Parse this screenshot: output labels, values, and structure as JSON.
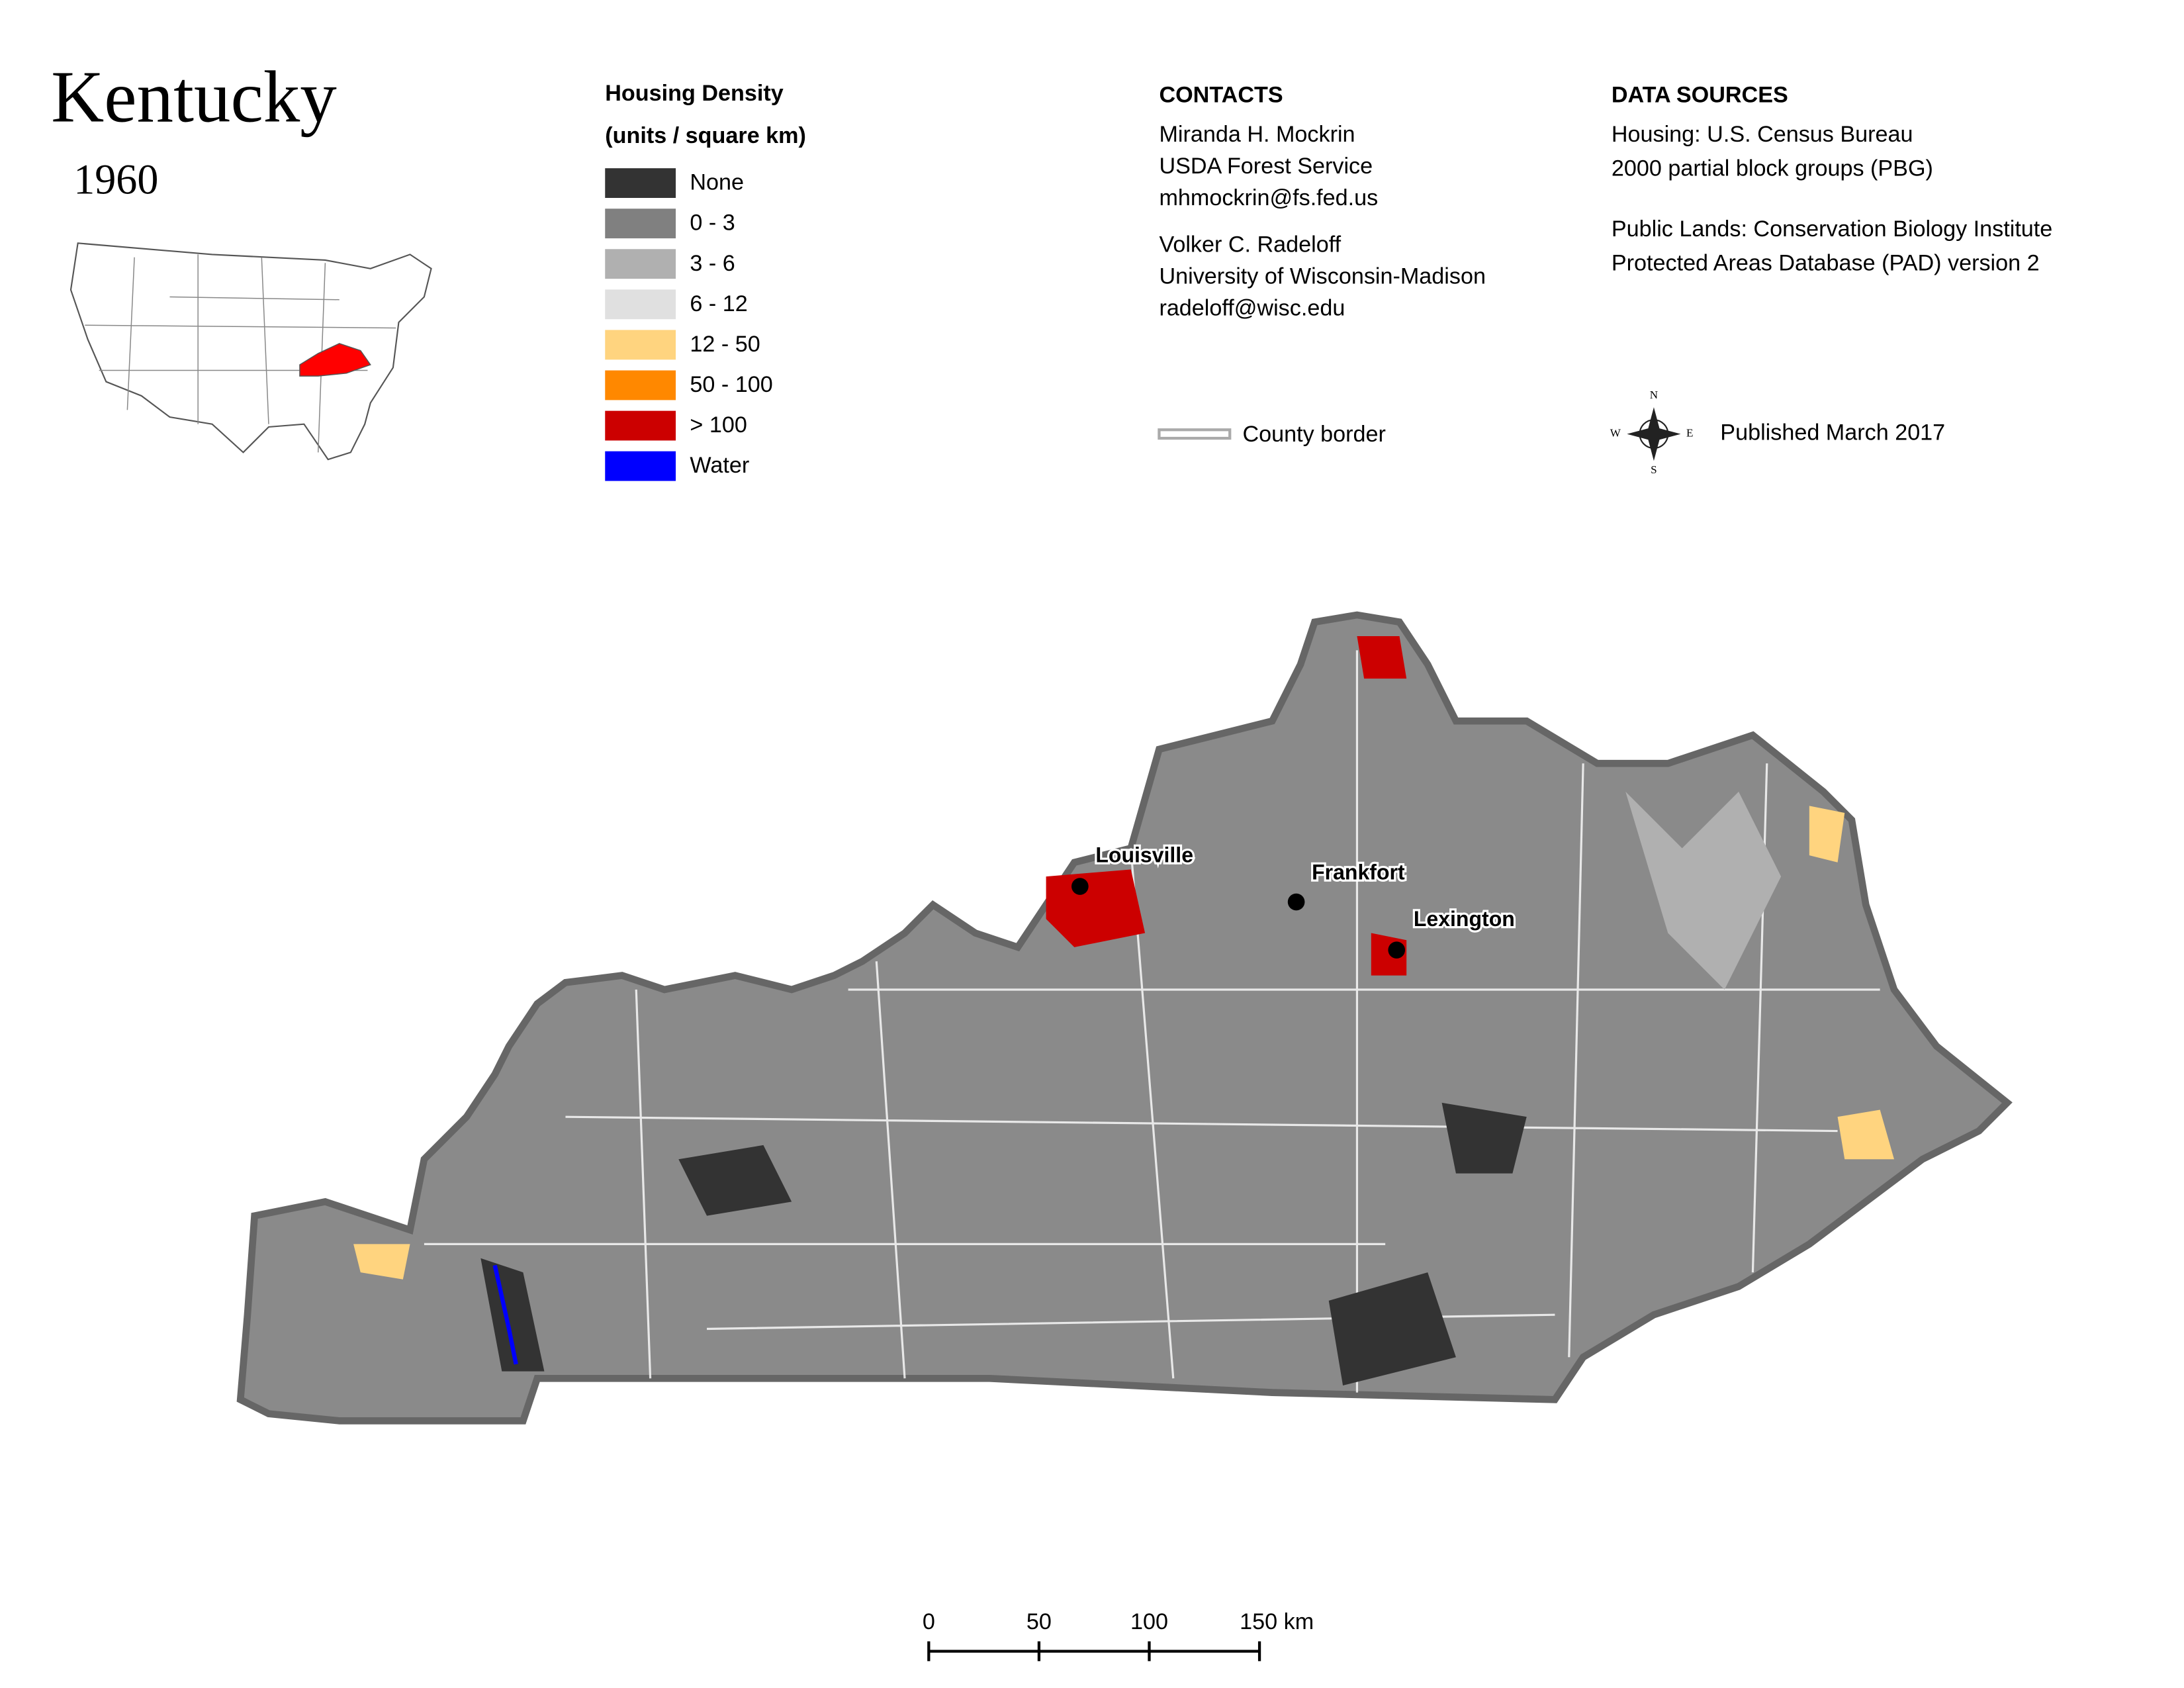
{
  "header": {
    "title": "Kentucky",
    "year": "1960"
  },
  "legend": {
    "title": "Housing Density",
    "subtitle": "(units / square km)",
    "items": [
      {
        "label": "None",
        "color": "#333333"
      },
      {
        "label": "0 - 3",
        "color": "#808080"
      },
      {
        "label": "3 - 6",
        "color": "#b0b0b0"
      },
      {
        "label": "6 - 12",
        "color": "#e0e0e0"
      },
      {
        "label": "12 - 50",
        "color": "#ffd47f"
      },
      {
        "label": "50 - 100",
        "color": "#ff8800"
      },
      {
        "label": "> 100",
        "color": "#cc0000"
      },
      {
        "label": "Water",
        "color": "#0000ff"
      }
    ],
    "county_border": "County border"
  },
  "contacts": {
    "heading": "CONTACTS",
    "people": [
      {
        "name": "Miranda H. Mockrin",
        "org": "USDA Forest Service",
        "email": "mhmockrin@fs.fed.us"
      },
      {
        "name": "Volker C. Radeloff",
        "org": "University of Wisconsin-Madison",
        "email": "radeloff@wisc.edu"
      }
    ]
  },
  "data_sources": {
    "heading": "DATA SOURCES",
    "lines": [
      "Housing: U.S. Census Bureau",
      "2000 partial block groups (PBG)",
      "Public Lands: Conservation Biology Institute",
      "Protected Areas Database (PAD) version 2"
    ]
  },
  "compass": {
    "n": "N",
    "e": "E",
    "s": "S",
    "w": "W"
  },
  "published": "Published March 2017",
  "cities": [
    "Louisville",
    "Frankfort",
    "Lexington"
  ],
  "scale_bar": {
    "ticks": [
      {
        "value": 0,
        "label": "0"
      },
      {
        "value": 50,
        "label": "50"
      },
      {
        "value": 100,
        "label": "100"
      },
      {
        "value": 150,
        "label": "150 km"
      }
    ]
  }
}
